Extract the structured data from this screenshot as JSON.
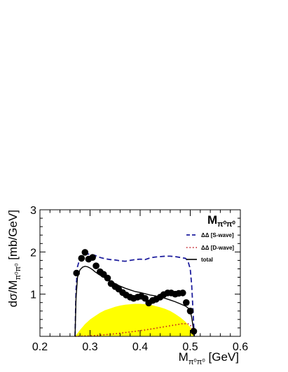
{
  "chart_data": {
    "type": "scatter",
    "title": "Mπ⁰π⁰",
    "title_main": "M",
    "title_sub": "π⁰π⁰",
    "xlabel_main": "M",
    "xlabel_sub": "π⁰π⁰",
    "xlabel_unit": " [GeV]",
    "ylabel_main": "dσ/M",
    "ylabel_sub": "π⁰π⁰",
    "ylabel_unit": " [mb/GeV]",
    "xlim": [
      0.2,
      0.6
    ],
    "ylim": [
      0,
      3
    ],
    "x_ticks": [
      {
        "value": 0.2,
        "label": "0.2"
      },
      {
        "value": 0.3,
        "label": "0.3"
      },
      {
        "value": 0.4,
        "label": "0.4"
      },
      {
        "value": 0.5,
        "label": "0.5"
      },
      {
        "value": 0.6,
        "label": "0.6"
      }
    ],
    "y_ticks": [
      {
        "value": 1,
        "label": "1"
      },
      {
        "value": 2,
        "label": "2"
      },
      {
        "value": 3,
        "label": "3"
      }
    ],
    "grid": false,
    "legend_position": "top-right",
    "legend": {
      "s_wave_prefix": "ΔΔ",
      "s_wave_suffix": "[S-wave]",
      "d_wave_prefix": "ΔΔ",
      "d_wave_suffix": "[D-wave]",
      "total": "total"
    },
    "colors": {
      "s_wave": "#1f1f9e",
      "d_wave": "#c0141e",
      "total": "#000000",
      "data_points": "#000000",
      "phase_space": "#ffff00"
    },
    "data_points": {
      "x": [
        0.273,
        0.283,
        0.29,
        0.297,
        0.305,
        0.312,
        0.32,
        0.327,
        0.335,
        0.342,
        0.35,
        0.357,
        0.365,
        0.372,
        0.38,
        0.387,
        0.395,
        0.402,
        0.41,
        0.417,
        0.425,
        0.432,
        0.44,
        0.447,
        0.455,
        0.462,
        0.47,
        0.477,
        0.485,
        0.492,
        0.5,
        0.507
      ],
      "y": [
        1.5,
        1.85,
        1.99,
        1.83,
        1.87,
        1.67,
        1.53,
        1.47,
        1.38,
        1.25,
        1.18,
        1.12,
        1.04,
        0.98,
        0.93,
        0.9,
        0.93,
        0.95,
        0.9,
        0.79,
        0.85,
        0.88,
        0.93,
        0.99,
        1.03,
        1.03,
        1.0,
        1.02,
        1.03,
        0.8,
        0.6,
        0.12
      ]
    },
    "total_curve": {
      "x": [
        0.27,
        0.272,
        0.275,
        0.28,
        0.285,
        0.29,
        0.295,
        0.3,
        0.305,
        0.31,
        0.32,
        0.33,
        0.34,
        0.35,
        0.36,
        0.37,
        0.38,
        0.39,
        0.4,
        0.41,
        0.42,
        0.43,
        0.44,
        0.45,
        0.46,
        0.47,
        0.48,
        0.49,
        0.495,
        0.5,
        0.503,
        0.506,
        0.508
      ],
      "y": [
        0.0,
        0.9,
        1.4,
        1.58,
        1.64,
        1.66,
        1.65,
        1.62,
        1.58,
        1.53,
        1.45,
        1.38,
        1.31,
        1.25,
        1.19,
        1.14,
        1.1,
        1.06,
        1.04,
        1.01,
        0.98,
        0.96,
        0.93,
        0.9,
        0.86,
        0.82,
        0.77,
        0.72,
        0.68,
        0.6,
        0.45,
        0.2,
        0.0
      ]
    },
    "s_wave_curve": {
      "x": [
        0.27,
        0.272,
        0.275,
        0.28,
        0.285,
        0.29,
        0.3,
        0.31,
        0.32,
        0.33,
        0.34,
        0.35,
        0.36,
        0.37,
        0.38,
        0.39,
        0.4,
        0.41,
        0.42,
        0.43,
        0.44,
        0.45,
        0.46,
        0.47,
        0.48,
        0.49,
        0.495,
        0.5,
        0.503,
        0.506,
        0.508
      ],
      "y": [
        0.0,
        1.1,
        1.65,
        1.86,
        1.93,
        1.95,
        1.95,
        1.92,
        1.87,
        1.84,
        1.82,
        1.81,
        1.79,
        1.78,
        1.8,
        1.82,
        1.83,
        1.82,
        1.86,
        1.88,
        1.89,
        1.9,
        1.9,
        1.89,
        1.87,
        1.85,
        1.8,
        1.6,
        1.2,
        0.5,
        0.0
      ]
    },
    "d_wave_curve": {
      "x": [
        0.27,
        0.29,
        0.31,
        0.33,
        0.35,
        0.37,
        0.39,
        0.41,
        0.43,
        0.45,
        0.47,
        0.485,
        0.495,
        0.5,
        0.505,
        0.508
      ],
      "y": [
        0.0,
        0.01,
        0.02,
        0.04,
        0.06,
        0.09,
        0.12,
        0.15,
        0.19,
        0.23,
        0.27,
        0.3,
        0.3,
        0.27,
        0.15,
        0.0
      ]
    },
    "phase_space": {
      "x": [
        0.27,
        0.28,
        0.29,
        0.3,
        0.31,
        0.32,
        0.33,
        0.34,
        0.35,
        0.36,
        0.37,
        0.38,
        0.39,
        0.4,
        0.41,
        0.42,
        0.43,
        0.44,
        0.45,
        0.46,
        0.47,
        0.48,
        0.49,
        0.5,
        0.505,
        0.508
      ],
      "y": [
        0.0,
        0.15,
        0.29,
        0.4,
        0.48,
        0.56,
        0.62,
        0.66,
        0.7,
        0.73,
        0.75,
        0.76,
        0.77,
        0.77,
        0.76,
        0.75,
        0.72,
        0.69,
        0.65,
        0.6,
        0.53,
        0.45,
        0.35,
        0.22,
        0.12,
        0.0
      ]
    }
  }
}
